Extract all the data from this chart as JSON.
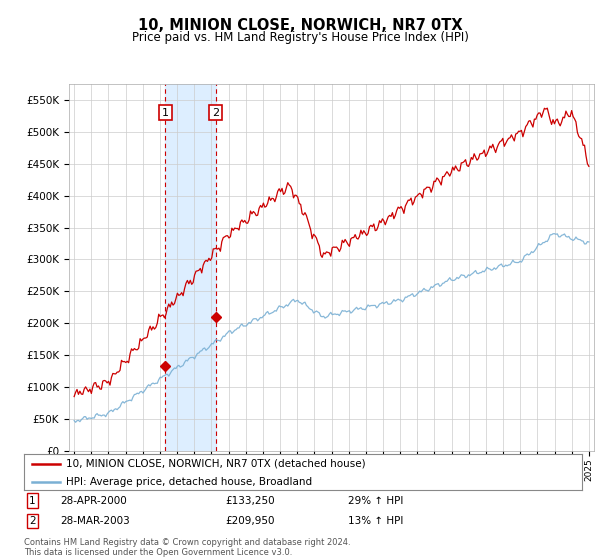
{
  "title": "10, MINION CLOSE, NORWICH, NR7 0TX",
  "subtitle": "Price paid vs. HM Land Registry's House Price Index (HPI)",
  "background_color": "#ffffff",
  "plot_bg_color": "#ffffff",
  "grid_color": "#cccccc",
  "hpi_color": "#7ab0d4",
  "price_color": "#cc0000",
  "shade_color": "#ddeeff",
  "sale1_year": 2000.32,
  "sale1_price": 133250,
  "sale2_year": 2003.24,
  "sale2_price": 209950,
  "legend1": "10, MINION CLOSE, NORWICH, NR7 0TX (detached house)",
  "legend2": "HPI: Average price, detached house, Broadland",
  "footer": "Contains HM Land Registry data © Crown copyright and database right 2024.\nThis data is licensed under the Open Government Licence v3.0.",
  "ylim_min": 0,
  "ylim_max": 575000,
  "yticks": [
    0,
    50000,
    100000,
    150000,
    200000,
    250000,
    300000,
    350000,
    400000,
    450000,
    500000,
    550000
  ],
  "ytick_labels": [
    "£0",
    "£50K",
    "£100K",
    "£150K",
    "£200K",
    "£250K",
    "£300K",
    "£350K",
    "£400K",
    "£450K",
    "£500K",
    "£550K"
  ],
  "xmin": 1994.7,
  "xmax": 2025.3
}
